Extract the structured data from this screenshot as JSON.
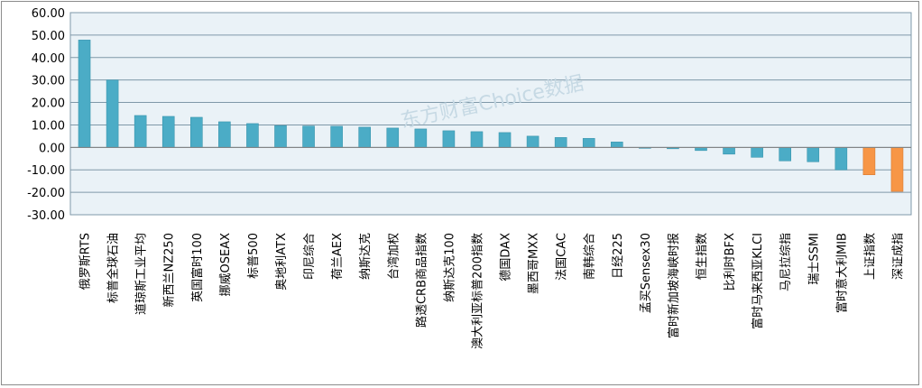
{
  "watermark": "东方财富Choice数据",
  "chart_data": {
    "type": "bar",
    "title": "",
    "xlabel": "",
    "ylabel": "",
    "ylim": [
      -30,
      60
    ],
    "yticks": [
      "60.00",
      "50.00",
      "40.00",
      "30.00",
      "20.00",
      "10.00",
      "0.00",
      "-10.00",
      "-20.00",
      "-30.00"
    ],
    "grid": true,
    "legend": "none",
    "colors": {
      "default": "#4bacc6",
      "highlight": "#f79646",
      "plot_bg": "#eaf2f7",
      "grid": "#7f98a8"
    },
    "categories": [
      "俄罗斯RTS",
      "标普全球石油",
      "道琼斯工业平均",
      "新西兰NZ250",
      "英国富时100",
      "挪威OSEAX",
      "标普500",
      "奥地利ATX",
      "印尼综合",
      "荷兰AEX",
      "纳斯达克",
      "台湾加权",
      "路透CRB商品指数",
      "纳斯达克100",
      "澳大利亚标普200指数",
      "德国DAX",
      "墨西哥MXX",
      "法国CAC",
      "南韩综合",
      "日经225",
      "孟买Sensex30",
      "富时新加坡海峡时报",
      "恒生指数",
      "比利时BFX",
      "富时马来西亚KLCI",
      "马尼拉综指",
      "瑞士SSMI",
      "富时意大利MIB",
      "上证指数",
      "深证成指"
    ],
    "values": [
      47.8,
      30.0,
      14.2,
      13.8,
      13.4,
      11.4,
      10.6,
      9.7,
      9.5,
      9.4,
      9.0,
      8.6,
      8.2,
      7.4,
      7.0,
      6.6,
      5.0,
      4.4,
      4.0,
      2.4,
      -0.4,
      -0.6,
      -1.4,
      -3.0,
      -4.4,
      -6.0,
      -6.4,
      -10.0,
      -12.2,
      -19.6
    ],
    "highlighted": [
      "上证指数",
      "深证成指"
    ]
  }
}
